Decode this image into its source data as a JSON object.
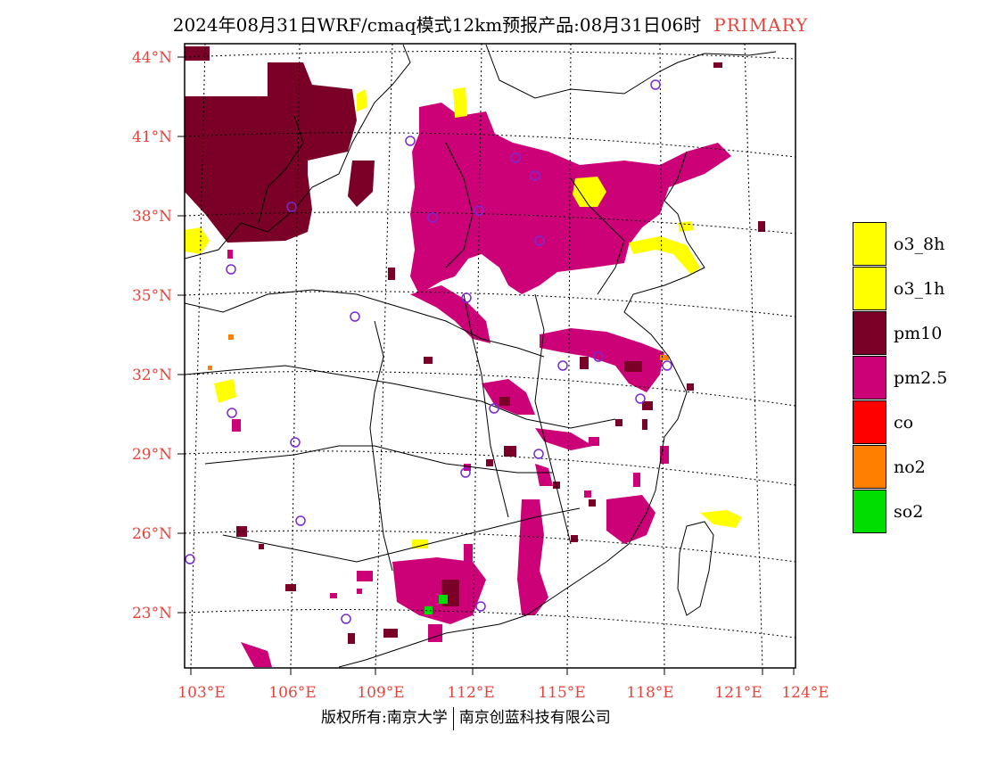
{
  "title": {
    "main": "2024年08月31日WRF/cmaq模式12km预报产品:08月31日06时",
    "tag": "PRIMARY",
    "tag_color": "#e8433a"
  },
  "map": {
    "lat_labels": [
      "44°N",
      "41°N",
      "38°N",
      "35°N",
      "32°N",
      "29°N",
      "26°N",
      "23°N"
    ],
    "lon_labels": [
      "103°E",
      "106°E",
      "109°E",
      "112°E",
      "115°E",
      "118°E",
      "121°E",
      "124°E"
    ],
    "label_color": "#e8433a",
    "pollutant_colors": {
      "o3": "#ffff00",
      "pm10": "#7b0028",
      "pm25": "#cc0077",
      "co": "#ff0000",
      "no2": "#ff7f00",
      "so2": "#00dd00"
    },
    "station_marker_color": "#7a29d6"
  },
  "legend": [
    {
      "label": "o3_8h",
      "color": "#ffff00"
    },
    {
      "label": "o3_1h",
      "color": "#ffff00"
    },
    {
      "label": "pm10",
      "color": "#7b0028"
    },
    {
      "label": "pm2.5",
      "color": "#cc0077"
    },
    {
      "label": "co",
      "color": "#ff0000"
    },
    {
      "label": "no2",
      "color": "#ff7f00"
    },
    {
      "label": "so2",
      "color": "#00dd00"
    }
  ],
  "footer": {
    "left": "版权所有:南京大学",
    "right": "南京创蓝科技有限公司"
  }
}
